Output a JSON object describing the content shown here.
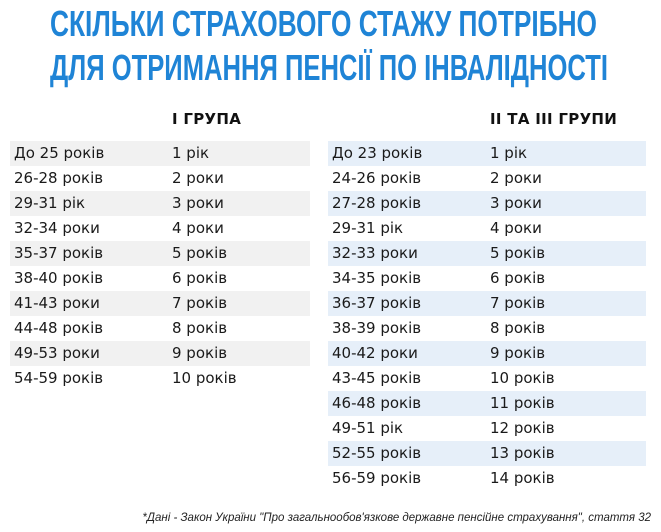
{
  "title": [
    "СКІЛЬКИ СТРАХОВОГО СТАЖУ ПОТРІБНО",
    "ДЛЯ ОТРИМАННЯ ПЕНСІЇ ПО ІНВАЛІДНОСТІ"
  ],
  "tables": [
    {
      "header": "І ГРУПА",
      "rows": [
        [
          "До 25 років",
          "1 рік"
        ],
        [
          "26-28 років",
          "2 роки"
        ],
        [
          "29-31 рік",
          "3 роки"
        ],
        [
          "32-34 роки",
          "4 роки"
        ],
        [
          "35-37 років",
          "5 років"
        ],
        [
          "38-40 років",
          "6 років"
        ],
        [
          "41-43 роки",
          "7 років"
        ],
        [
          "44-48 років",
          "8 років"
        ],
        [
          "49-53 роки",
          "9 років"
        ],
        [
          "54-59 років",
          "10 років"
        ]
      ]
    },
    {
      "header": "ІІ ТА ІІІ ГРУПИ",
      "rows": [
        [
          "До 23 років",
          "1 рік"
        ],
        [
          "24-26 років",
          "2 роки"
        ],
        [
          "27-28 років",
          "3 роки"
        ],
        [
          "29-31 рік",
          "4 роки"
        ],
        [
          "32-33 роки",
          "5 років"
        ],
        [
          "34-35 років",
          "6 років"
        ],
        [
          "36-37 років",
          "7 років"
        ],
        [
          "38-39 років",
          "8 років"
        ],
        [
          "40-42 роки",
          "9 років"
        ],
        [
          "43-45 років",
          "10 років"
        ],
        [
          "46-48 років",
          "11 років"
        ],
        [
          "49-51 рік",
          "12 років"
        ],
        [
          "52-55 років",
          "13 років"
        ],
        [
          "56-59 років",
          "14 років"
        ]
      ]
    }
  ],
  "footnote": "*Дані - Закон України \"Про загальнообов'язкове державне пенсійне страхування\", стаття 32"
}
